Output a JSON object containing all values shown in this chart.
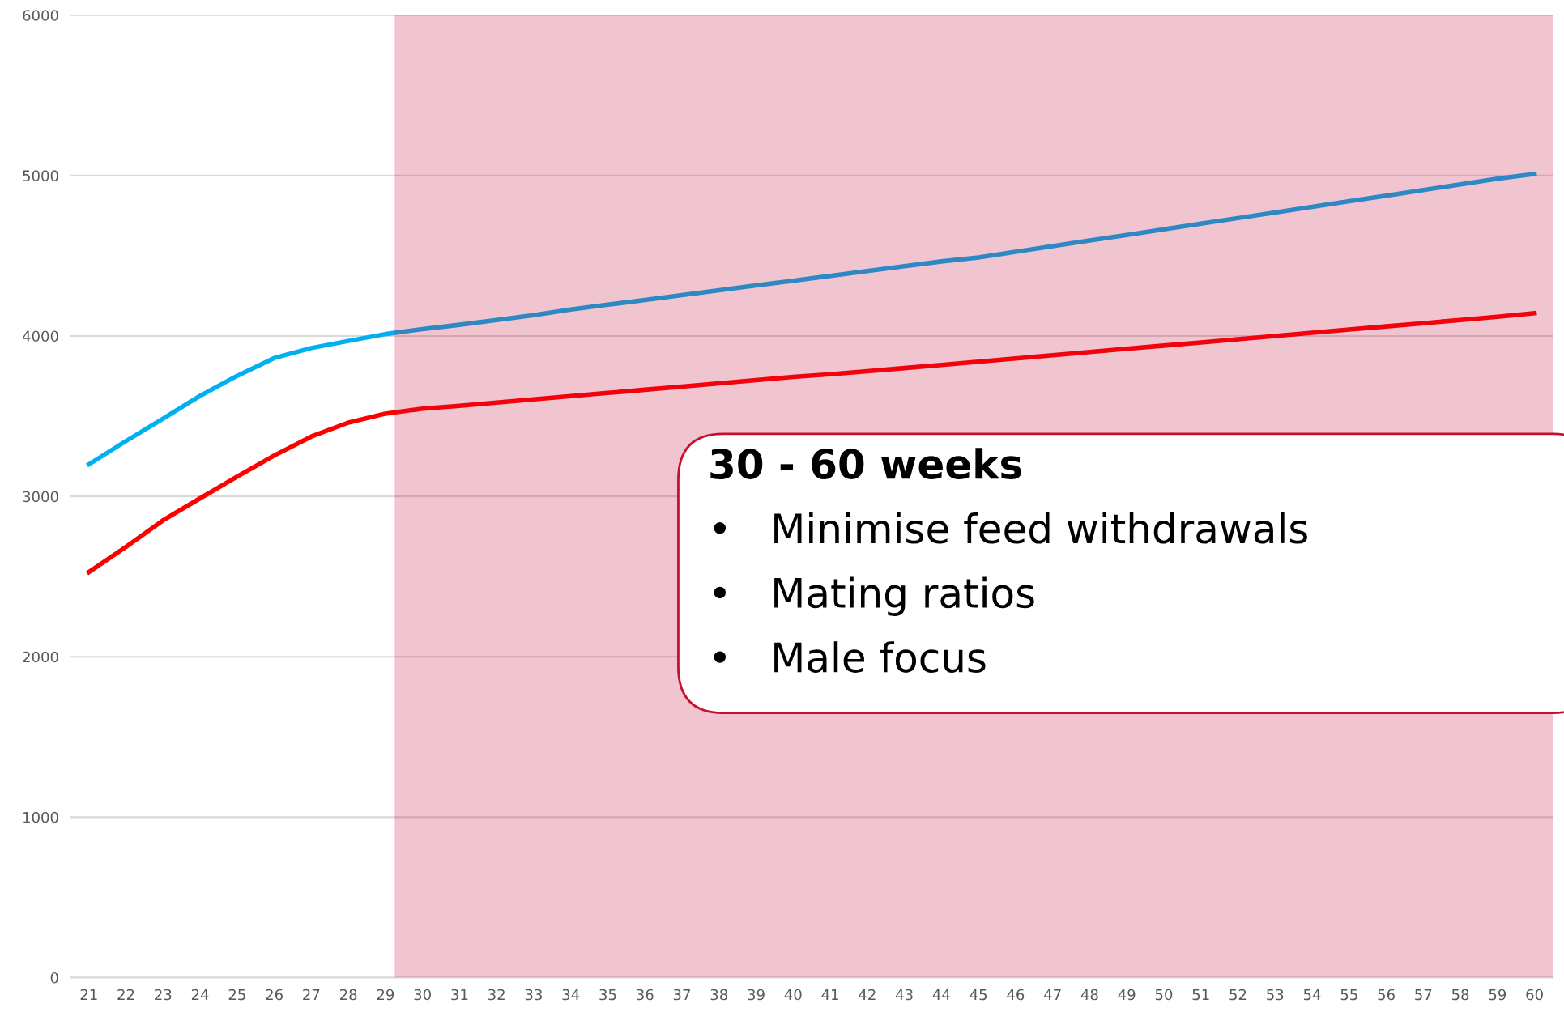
{
  "chart_data": {
    "type": "line",
    "x": [
      21,
      22,
      23,
      24,
      25,
      26,
      27,
      28,
      29,
      30,
      31,
      32,
      33,
      34,
      35,
      36,
      37,
      38,
      39,
      40,
      41,
      42,
      43,
      44,
      45,
      46,
      47,
      48,
      49,
      50,
      51,
      52,
      53,
      54,
      55,
      56,
      57,
      58,
      59,
      60
    ],
    "series": [
      {
        "color": "#00b0f0",
        "values": [
          3200,
          3345,
          3485,
          3627,
          3752,
          3863,
          3925,
          3969,
          4012,
          4043,
          4070,
          4100,
          4130,
          4165,
          4195,
          4225,
          4255,
          4285,
          4315,
          4345,
          4375,
          4405,
          4435,
          4465,
          4490,
          4525,
          4560,
          4595,
          4630,
          4665,
          4700,
          4735,
          4770,
          4805,
          4840,
          4875,
          4910,
          4945,
          4980,
          5010
        ]
      },
      {
        "color": "#ff0000",
        "values": [
          2528,
          2685,
          2851,
          2988,
          3124,
          3255,
          3373,
          3460,
          3516,
          3547,
          3565,
          3585,
          3605,
          3625,
          3645,
          3665,
          3685,
          3705,
          3725,
          3745,
          3762,
          3780,
          3800,
          3820,
          3840,
          3860,
          3880,
          3900,
          3920,
          3940,
          3960,
          3980,
          4000,
          4020,
          4040,
          4060,
          4080,
          4100,
          4120,
          4143
        ]
      }
    ],
    "xlim": [
      20.5,
      60.5
    ],
    "xticks": [
      21,
      22,
      23,
      24,
      25,
      26,
      27,
      28,
      29,
      30,
      31,
      32,
      33,
      34,
      35,
      36,
      37,
      38,
      39,
      40,
      41,
      42,
      43,
      44,
      45,
      46,
      47,
      48,
      49,
      50,
      51,
      52,
      53,
      54,
      55,
      56,
      57,
      58,
      59,
      60
    ],
    "ylim": [
      0,
      6000
    ],
    "yticks": [
      0,
      1000,
      2000,
      3000,
      4000,
      5000,
      6000
    ],
    "grid": "y",
    "legend": false,
    "marker": "none",
    "line_style": "solid",
    "bands": [
      {
        "axis": "x",
        "from": 29.25,
        "to": 60.5,
        "color": "#c40837"
      }
    ],
    "annotations": [
      "30 - 60 weeks",
      "•   Minimise feed withdrawals",
      "•   Mating ratios",
      "•   Male focus"
    ]
  }
}
